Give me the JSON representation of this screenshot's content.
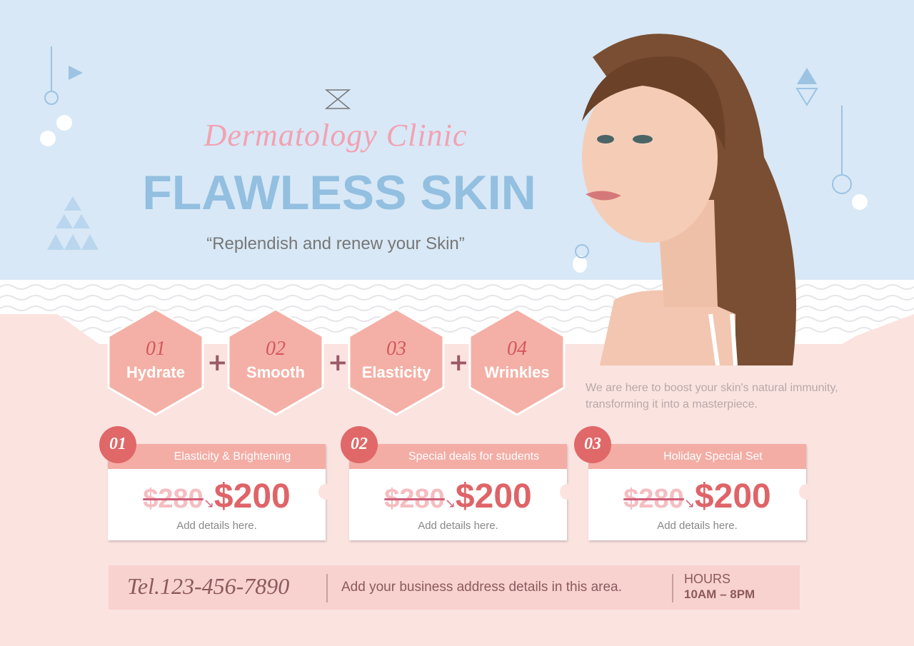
{
  "header": {
    "script_title": "Dermatology Clinic",
    "headline": "FLAWLESS SKIN",
    "tagline": "“Replendish and renew your Skin”"
  },
  "steps": [
    {
      "num": "01",
      "label": "Hydrate"
    },
    {
      "num": "02",
      "label": "Smooth"
    },
    {
      "num": "03",
      "label": "Elasticity"
    },
    {
      "num": "04",
      "label": "Wrinkles"
    }
  ],
  "plus_symbol": "+",
  "intro": "We are here to boost your skin's natural immunity, transforming it into a masterpiece.",
  "offers": [
    {
      "num": "01",
      "title": "Elasticity & Brightening",
      "old_price": "$280",
      "new_price": "$200",
      "details": "Add details here."
    },
    {
      "num": "02",
      "title": "Special deals for students",
      "old_price": "$280",
      "new_price": "$200",
      "details": "Add details here."
    },
    {
      "num": "03",
      "title": "Holiday Special Set",
      "old_price": "$280",
      "new_price": "$200",
      "details": "Add details here."
    }
  ],
  "footer": {
    "tel": "Tel.123-456-7890",
    "address": "Add your business address details in this area.",
    "hours_label": "HOURS",
    "hours_value": "10AM – 8PM"
  },
  "colors": {
    "sky": "#d8e8f6",
    "blush": "#fbe3e0",
    "accent": "#e06868",
    "headline": "#93bfe0",
    "hexagon": "#f4b0a6"
  }
}
